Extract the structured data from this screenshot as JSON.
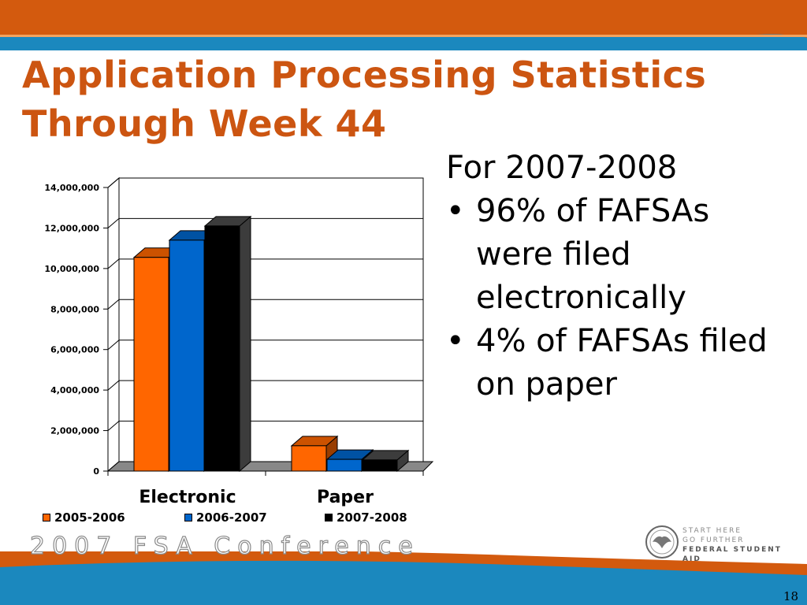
{
  "title": {
    "line1": "Application Processing Statistics",
    "line2": "Through Week 44"
  },
  "bullets": {
    "heading": "For 2007-2008",
    "items": [
      "96% of FAFSAs were filed electronically",
      "4% of FAFSAs filed on paper"
    ]
  },
  "chart_data": {
    "type": "bar",
    "categories": [
      "Electronic",
      "Paper"
    ],
    "series": [
      {
        "name": "2005-2006",
        "values": [
          10550000,
          1250000
        ],
        "color": "#ff6600"
      },
      {
        "name": "2006-2007",
        "values": [
          11400000,
          580000
        ],
        "color": "#0066cc"
      },
      {
        "name": "2007-2008",
        "values": [
          12100000,
          550000
        ],
        "color": "#000000"
      }
    ],
    "ylim": [
      0,
      14000000
    ],
    "yticks": [
      0,
      2000000,
      4000000,
      6000000,
      8000000,
      10000000,
      12000000,
      14000000
    ],
    "ytick_labels": [
      "0",
      "2,000,000",
      "4,000,000",
      "6,000,000",
      "8,000,000",
      "10,000,000",
      "12,000,000",
      "14,000,000"
    ],
    "grid": true,
    "three_d": true,
    "legend_position": "bottom"
  },
  "footer": {
    "conference": "2007 FSA Conference",
    "logo_line1": "START HERE",
    "logo_line2": "GO FURTHER",
    "logo_line3": "FEDERAL STUDENT AID",
    "page_number": "18"
  },
  "colors": {
    "orange_band": "#d35a0e",
    "blue_band": "#1b88be",
    "title": "#cc5511"
  }
}
